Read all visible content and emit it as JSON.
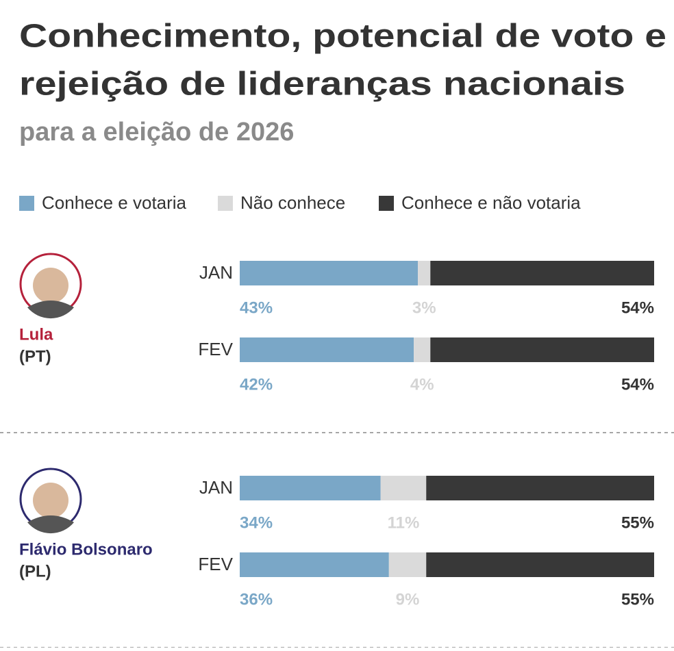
{
  "chart_data": {
    "type": "stacked_bar",
    "title": [
      "Conhecimento, potencial de voto e",
      "rejeição de lideranças nacionais"
    ],
    "subtitle": "para a eleição de 2026",
    "xlim": [
      0,
      100
    ],
    "series": [
      {
        "name": "Conhece e votaria",
        "color": "#7aa7c7"
      },
      {
        "name": "Não conhece",
        "color": "#dadada"
      },
      {
        "name": "Conhece e não votaria",
        "color": "#383838"
      }
    ],
    "panels": [
      {
        "name": "Lula",
        "party": "(PT)",
        "color": "#b5213b",
        "categories": [
          "JAN",
          "FEV"
        ],
        "values": [
          [
            43,
            3,
            54
          ],
          [
            42,
            4,
            54
          ]
        ],
        "value_labels": [
          [
            "43%",
            "3%",
            "54%"
          ],
          [
            "42%",
            "4%",
            "54%"
          ]
        ]
      },
      {
        "name": "Flávio Bolsonaro",
        "party": "(PL)",
        "color": "#2d2a6e",
        "categories": [
          "JAN",
          "FEV"
        ],
        "values": [
          [
            34,
            11,
            55
          ],
          [
            36,
            9,
            55
          ]
        ],
        "value_labels": [
          [
            "34%",
            "11%",
            "55%"
          ],
          [
            "36%",
            "9%",
            "55%"
          ]
        ]
      }
    ]
  }
}
